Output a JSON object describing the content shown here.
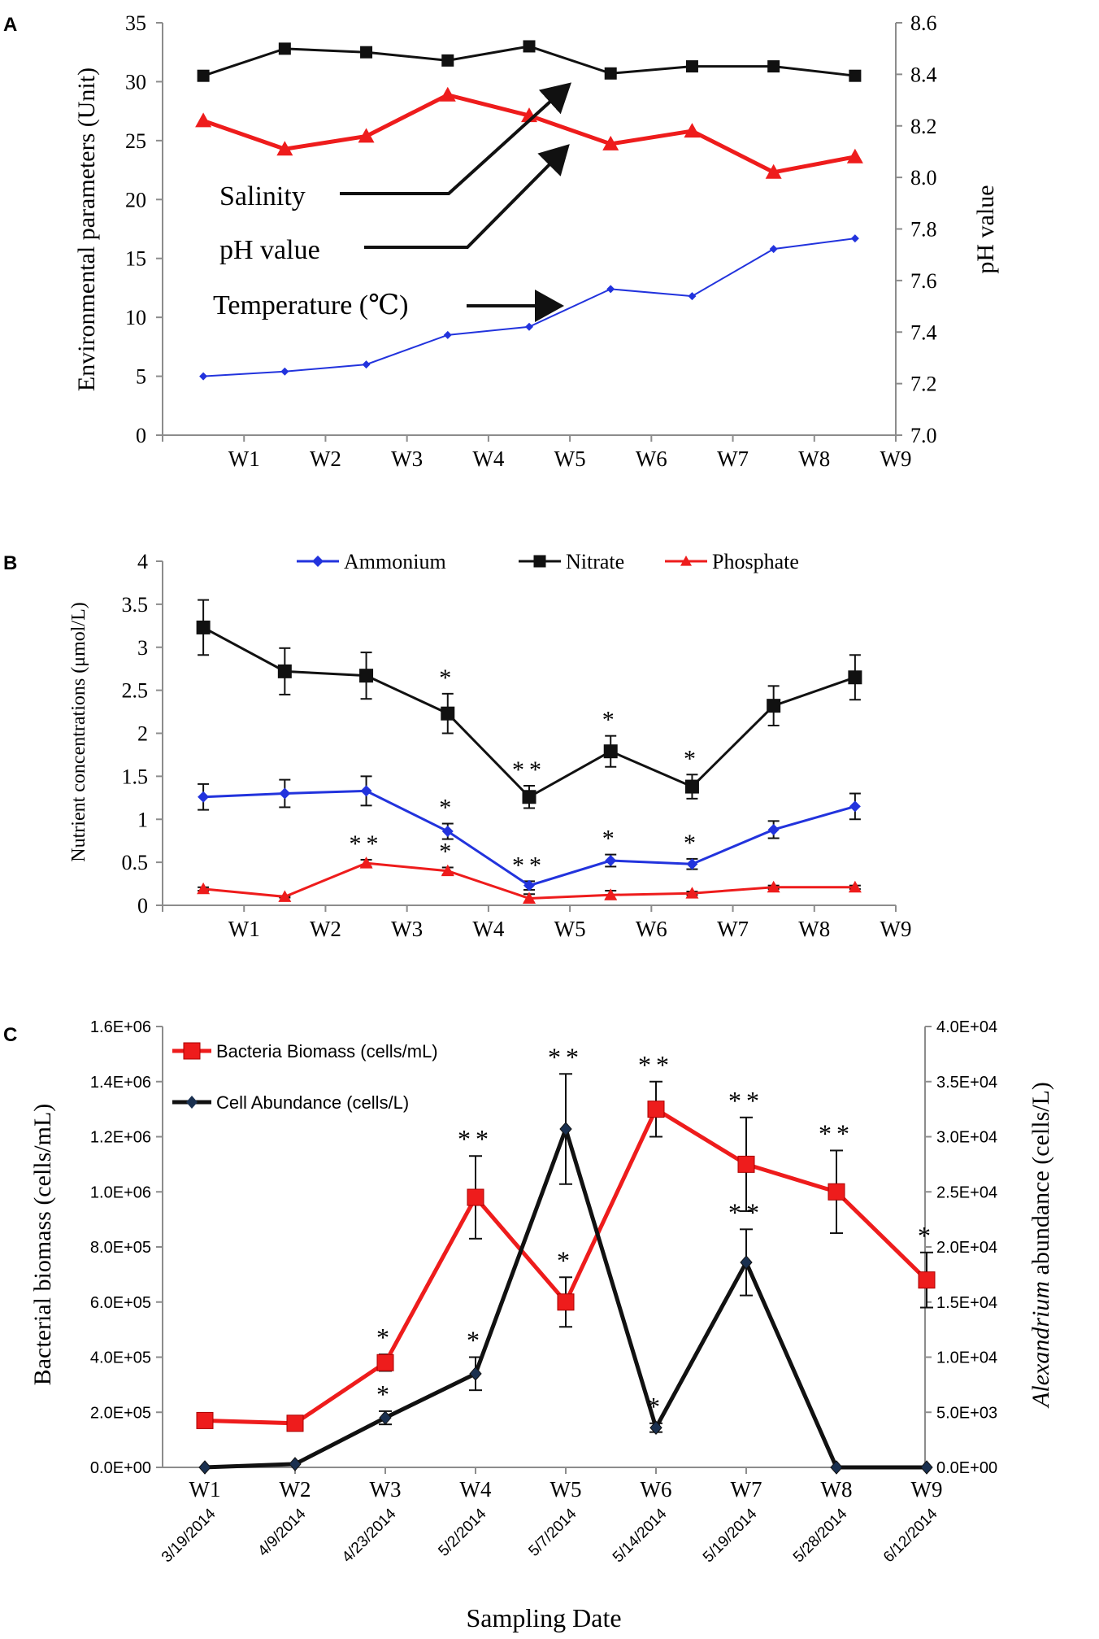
{
  "colors": {
    "red": "#ee1c1c",
    "black": "#111111",
    "blue": "#2233dd",
    "axis": "#8c8c8c"
  },
  "chart_data": [
    {
      "panel": "A",
      "type": "line",
      "categories": [
        "W1",
        "W2",
        "W3",
        "W4",
        "W5",
        "W6",
        "W7",
        "W8",
        "W9"
      ],
      "ylabel": "Environmental parameters (Unit)",
      "y2label": "pH value",
      "ylim": [
        0,
        35
      ],
      "y2lim": [
        7.0,
        8.6
      ],
      "yticks": [
        "0",
        "5",
        "10",
        "15",
        "20",
        "25",
        "30",
        "35"
      ],
      "y2ticks": [
        "7.0",
        "7.2",
        "7.4",
        "7.6",
        "7.8",
        "8.0",
        "8.2",
        "8.4",
        "8.6"
      ],
      "series": [
        {
          "name": "Salinity",
          "axis": "left",
          "marker": "square",
          "color": "#111111",
          "values": [
            30.5,
            32.8,
            32.5,
            31.8,
            33.0,
            30.7,
            31.3,
            31.3,
            30.5
          ]
        },
        {
          "name": "pH value",
          "axis": "right",
          "marker": "triangle",
          "color": "#ee1c1c",
          "values": [
            8.22,
            8.11,
            8.16,
            8.32,
            8.24,
            8.13,
            8.18,
            8.02,
            8.08
          ]
        },
        {
          "name": "Temperature (℃)",
          "axis": "left",
          "marker": "diamond",
          "color": "#2233dd",
          "values": [
            5.0,
            5.4,
            6.0,
            8.5,
            9.2,
            12.4,
            11.8,
            15.8,
            16.7
          ]
        }
      ],
      "annotations": [
        "Salinity",
        "pH value",
        "Temperature (℃)"
      ]
    },
    {
      "panel": "B",
      "type": "line",
      "categories": [
        "W1",
        "W2",
        "W3",
        "W4",
        "W5",
        "W6",
        "W7",
        "W8",
        "W9"
      ],
      "ylabel": "Nutrient concentrations (μmol/L)",
      "ylim": [
        0,
        4
      ],
      "yticks": [
        "0",
        "0.5",
        "1",
        "1.5",
        "2",
        "2.5",
        "3",
        "3.5",
        "4"
      ],
      "legend": [
        "Ammonium",
        "Nitrate",
        "Phosphate"
      ],
      "series": [
        {
          "name": "Ammonium",
          "marker": "diamond",
          "color": "#2233dd",
          "values": [
            1.26,
            1.3,
            1.33,
            0.86,
            0.23,
            0.52,
            0.48,
            0.88,
            1.15
          ],
          "errors": [
            0.15,
            0.16,
            0.17,
            0.09,
            0.05,
            0.07,
            0.06,
            0.1,
            0.15
          ],
          "significance": [
            "",
            "",
            "",
            "*",
            "**",
            "*",
            "*",
            "",
            ""
          ]
        },
        {
          "name": "Nitrate",
          "marker": "square",
          "color": "#111111",
          "values": [
            3.23,
            2.72,
            2.67,
            2.23,
            1.26,
            1.79,
            1.38,
            2.32,
            2.65
          ],
          "errors": [
            0.32,
            0.27,
            0.27,
            0.23,
            0.13,
            0.18,
            0.14,
            0.23,
            0.26
          ],
          "significance": [
            "",
            "",
            "",
            "*",
            "**",
            "*",
            "*",
            "",
            ""
          ]
        },
        {
          "name": "Phosphate",
          "marker": "triangle",
          "color": "#ee1c1c",
          "values": [
            0.19,
            0.1,
            0.49,
            0.4,
            0.08,
            0.12,
            0.14,
            0.21,
            0.21
          ],
          "errors": [
            0.02,
            0.01,
            0.04,
            0.04,
            0.05,
            0.05,
            0.02,
            0.02,
            0.02
          ],
          "significance": [
            "",
            "",
            "**",
            "*",
            "",
            "",
            "",
            "",
            ""
          ]
        }
      ]
    },
    {
      "panel": "C",
      "type": "line",
      "categories": [
        "W1",
        "W2",
        "W3",
        "W4",
        "W5",
        "W6",
        "W7",
        "W8",
        "W9"
      ],
      "dates": [
        "3/19/2014",
        "4/9/2014",
        "4/23/2014",
        "5/2/2014",
        "5/7/2014",
        "5/14/2014",
        "5/19/2014",
        "5/28/2014",
        "6/12/2014"
      ],
      "xlabel": "Sampling Date",
      "ylabel": "Bacterial biomass (cells/mL)",
      "y2label_italic": "Alexandrium",
      "y2label_rest": " abundance (cells/L)",
      "ylim": [
        0,
        1600000
      ],
      "y2lim": [
        0,
        40000
      ],
      "yticks": [
        "0.0E+00",
        "2.0E+05",
        "4.0E+05",
        "6.0E+05",
        "8.0E+05",
        "1.0E+06",
        "1.2E+06",
        "1.4E+06",
        "1.6E+06"
      ],
      "y2ticks": [
        "0.0E+00",
        "5.0E+03",
        "1.0E+04",
        "1.5E+04",
        "2.0E+04",
        "2.5E+04",
        "3.0E+04",
        "3.5E+04",
        "4.0E+04"
      ],
      "series": [
        {
          "name": "Bacteria Biomass (cells/mL)",
          "axis": "left",
          "marker": "square",
          "color": "#ee1c1c",
          "values": [
            170000,
            160000,
            380000,
            980000,
            600000,
            1300000,
            1100000,
            1000000,
            680000
          ],
          "errors": [
            0,
            0,
            30000,
            150000,
            90000,
            100000,
            170000,
            150000,
            100000
          ],
          "significance": [
            "",
            "",
            "*",
            "**",
            "*",
            "**",
            "**",
            "**",
            "*"
          ]
        },
        {
          "name": "Cell Abundance (cells/L)",
          "axis": "right",
          "marker": "diamond",
          "color": "#111111",
          "values": [
            0,
            300,
            4500,
            8500,
            30700,
            3600,
            18600,
            0,
            0
          ],
          "errors": [
            0,
            0,
            600,
            1500,
            5000,
            400,
            3000,
            0,
            0
          ],
          "significance": [
            "",
            "",
            "*",
            "*",
            "**",
            "*",
            "**",
            "",
            ""
          ]
        }
      ]
    }
  ],
  "panel_labels": [
    "A",
    "B",
    "C"
  ],
  "panelA": {
    "note_salinity": "Salinity",
    "note_ph": "pH value",
    "note_temp": "Temperature (℃)"
  }
}
